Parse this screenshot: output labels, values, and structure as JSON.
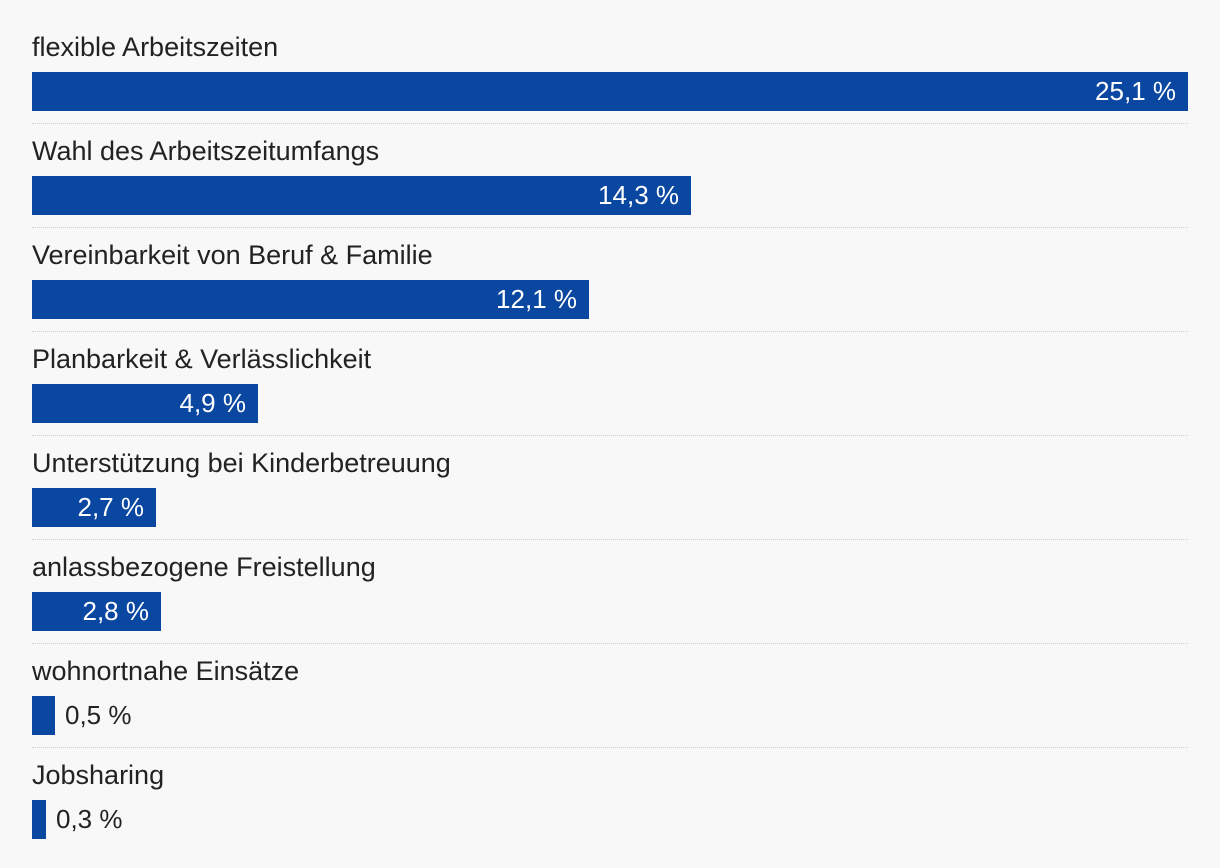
{
  "chart_data": {
    "type": "bar",
    "orientation": "horizontal",
    "categories": [
      "flexible Arbeitszeiten",
      "Wahl des Arbeitszeitumfangs",
      "Vereinbarkeit von Beruf & Familie",
      "Planbarkeit & Verlässlichkeit",
      "Unterstützung bei Kinderbetreuung",
      "anlassbezogene Freistellung",
      "wohnortnahe Einsätze",
      "Jobsharing"
    ],
    "values": [
      25.1,
      14.3,
      12.1,
      4.9,
      2.7,
      2.8,
      0.5,
      0.3
    ],
    "value_labels": [
      "25,1 %",
      "14,3 %",
      "12,1 %",
      "4,9 %",
      "2,7 %",
      "2,8 %",
      "0,5 %",
      "0,3 %"
    ],
    "xlim": [
      0,
      25.1
    ],
    "grid": false,
    "bar_color": "#0a47a1"
  }
}
